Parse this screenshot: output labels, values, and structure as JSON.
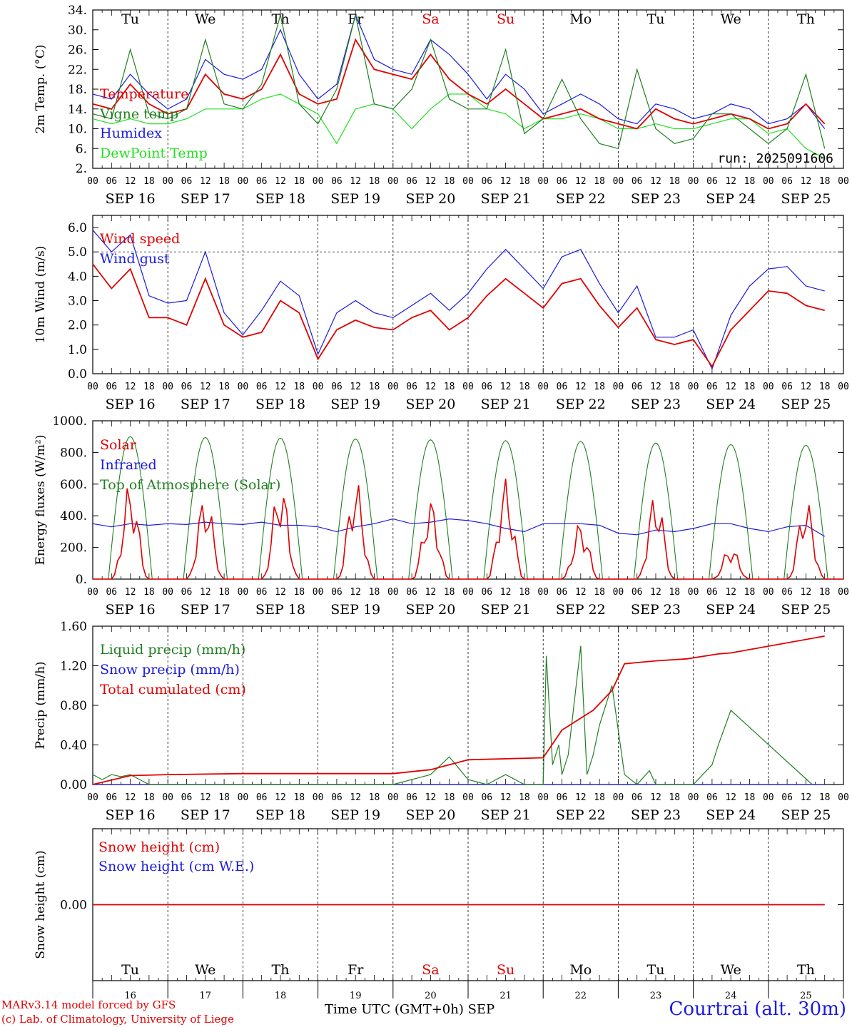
{
  "days": {
    "abbr": [
      "Tu",
      "We",
      "Th",
      "Fr",
      "Sa",
      "Su",
      "Mo",
      "Tu",
      "We",
      "Th"
    ],
    "dates": [
      "SEP 16",
      "SEP 17",
      "SEP 18",
      "SEP 19",
      "SEP 20",
      "SEP 21",
      "SEP 22",
      "SEP 23",
      "SEP 24",
      "SEP 25"
    ],
    "numbers": [
      "16",
      "17",
      "18",
      "19",
      "20",
      "21",
      "22",
      "23",
      "24",
      "25"
    ],
    "weekend_flags": [
      false,
      false,
      false,
      false,
      true,
      true,
      false,
      false,
      false,
      false
    ],
    "hour_ticks": [
      "00",
      "06",
      "12",
      "18"
    ]
  },
  "colors": {
    "red": "#e00000",
    "green": "#208020",
    "blue": "#1a1ae0",
    "lime": "#20e020",
    "black": "#000000"
  },
  "footer": {
    "credit_line1": "MARv3.14 model forced by GFS",
    "credit_line2": "(c) Lab. of Climatology, University of Liege",
    "x_title": "Time UTC (GMT+0h) SEP",
    "station": "Courtrai (alt. 30m)"
  },
  "chart_data": [
    {
      "type": "line",
      "ylabel": "2m Temp. (°C)",
      "ylim": [
        2,
        34
      ],
      "yticks": [
        "2.",
        "6.",
        "10.",
        "14.",
        "18.",
        "22.",
        "26.",
        "30.",
        "34."
      ],
      "annotation": "run: 2025091606",
      "grid": "vertical dashed at day boundaries",
      "series": [
        {
          "name": "Temperature",
          "color": "red",
          "x": [
            0,
            6,
            12,
            18,
            24,
            30,
            36,
            42,
            48,
            54,
            60,
            66,
            72,
            78,
            84,
            90,
            96,
            102,
            108,
            114,
            120,
            126,
            132,
            138,
            144,
            150,
            156,
            162,
            168,
            174,
            180,
            186,
            192,
            198,
            204,
            210,
            216,
            222,
            228,
            234
          ],
          "values": [
            15,
            14,
            19,
            15,
            13,
            14,
            21,
            17,
            16,
            18,
            25,
            17,
            15,
            16,
            28,
            22,
            21,
            20,
            25,
            20,
            17,
            15,
            18,
            15,
            12,
            13,
            14,
            12,
            11,
            10,
            14,
            12,
            11,
            12,
            13,
            12,
            10,
            11,
            15,
            11
          ]
        },
        {
          "name": "Vigne temp",
          "color": "green",
          "x": [
            0,
            6,
            12,
            18,
            24,
            30,
            36,
            42,
            48,
            54,
            60,
            66,
            72,
            78,
            84,
            90,
            96,
            102,
            108,
            114,
            120,
            126,
            132,
            138,
            144,
            150,
            156,
            162,
            168,
            174,
            180,
            186,
            192,
            198,
            204,
            210,
            216,
            222,
            228,
            234
          ],
          "values": [
            13,
            12,
            26,
            13,
            12,
            14,
            28,
            15,
            14,
            19,
            33,
            15,
            11,
            18,
            33,
            15,
            14,
            18,
            28,
            16,
            14,
            14,
            26,
            9,
            12,
            20,
            12,
            7,
            6,
            22,
            10,
            7,
            8,
            13,
            13,
            10,
            7,
            10,
            21,
            6
          ]
        },
        {
          "name": "Humidex",
          "color": "blue",
          "x": [
            0,
            6,
            12,
            18,
            24,
            30,
            36,
            42,
            48,
            54,
            60,
            66,
            72,
            78,
            84,
            90,
            96,
            102,
            108,
            114,
            120,
            126,
            132,
            138,
            144,
            150,
            156,
            162,
            168,
            174,
            180,
            186,
            192,
            198,
            204,
            210,
            216,
            222,
            228,
            234
          ],
          "values": [
            17,
            16,
            21,
            17,
            14,
            16,
            24,
            21,
            20,
            22,
            30,
            21,
            16,
            19,
            33,
            24,
            22,
            21,
            28,
            25,
            21,
            16,
            21,
            18,
            13,
            15,
            17,
            15,
            12,
            11,
            15,
            14,
            12,
            13,
            15,
            14,
            11,
            12,
            15,
            10
          ]
        },
        {
          "name": "DewPoint Temp",
          "color": "lime",
          "x": [
            0,
            6,
            12,
            18,
            24,
            30,
            36,
            42,
            48,
            54,
            60,
            66,
            72,
            78,
            84,
            90,
            96,
            102,
            108,
            114,
            120,
            126,
            132,
            138,
            144,
            150,
            156,
            162,
            168,
            174,
            180,
            186,
            192,
            198,
            204,
            210,
            216,
            222,
            228,
            234
          ],
          "values": [
            12,
            11,
            12,
            11,
            11,
            12,
            14,
            14,
            14,
            16,
            17,
            15,
            13,
            7,
            14,
            15,
            14,
            10,
            14,
            17,
            17,
            14,
            13,
            10,
            12,
            12,
            13,
            12,
            10,
            10,
            11,
            10,
            10,
            11,
            12,
            12,
            9,
            10,
            6,
            4
          ]
        }
      ]
    },
    {
      "type": "line",
      "ylabel": "10m Wind (m/s)",
      "ylim": [
        0,
        6.5
      ],
      "yticks": [
        "0.0",
        "1.0",
        "2.0",
        "3.0",
        "4.0",
        "5.0",
        "6.0"
      ],
      "reference_line": 5.0,
      "series": [
        {
          "name": "Wind speed",
          "color": "red",
          "x": [
            0,
            6,
            12,
            18,
            24,
            30,
            36,
            42,
            48,
            54,
            60,
            66,
            72,
            78,
            84,
            90,
            96,
            102,
            108,
            114,
            120,
            126,
            132,
            138,
            144,
            150,
            156,
            162,
            168,
            174,
            180,
            186,
            192,
            198,
            204,
            210,
            216,
            222,
            228,
            234
          ],
          "values": [
            4.5,
            3.5,
            4.3,
            2.3,
            2.3,
            2.0,
            3.9,
            2.0,
            1.5,
            1.7,
            3.0,
            2.5,
            0.6,
            1.8,
            2.2,
            1.9,
            1.8,
            2.3,
            2.6,
            1.8,
            2.3,
            3.2,
            3.9,
            3.3,
            2.7,
            3.7,
            3.9,
            2.8,
            1.9,
            2.7,
            1.4,
            1.2,
            1.4,
            0.3,
            1.8,
            2.6,
            3.4,
            3.3,
            2.8,
            2.6
          ]
        },
        {
          "name": "Wind gust",
          "color": "blue",
          "x": [
            0,
            6,
            12,
            18,
            24,
            30,
            36,
            42,
            48,
            54,
            60,
            66,
            72,
            78,
            84,
            90,
            96,
            102,
            108,
            114,
            120,
            126,
            132,
            138,
            144,
            150,
            156,
            162,
            168,
            174,
            180,
            186,
            192,
            198,
            204,
            210,
            216,
            222,
            228,
            234
          ],
          "values": [
            5.9,
            5.0,
            5.7,
            3.2,
            2.9,
            3.0,
            5.0,
            2.5,
            1.6,
            2.6,
            3.8,
            3.2,
            0.8,
            2.5,
            3.0,
            2.5,
            2.3,
            2.8,
            3.3,
            2.6,
            3.3,
            4.3,
            5.1,
            4.3,
            3.5,
            4.8,
            5.1,
            3.7,
            2.5,
            3.6,
            1.5,
            1.5,
            1.8,
            0.2,
            2.4,
            3.6,
            4.3,
            4.4,
            3.6,
            3.4
          ]
        }
      ]
    },
    {
      "type": "line",
      "ylabel": "Energy fluxes (W/m²)",
      "ylim": [
        0,
        1000
      ],
      "yticks": [
        "0.",
        "200.",
        "400.",
        "600.",
        "800.",
        "1000."
      ],
      "series": [
        {
          "name": "Solar",
          "color": "red",
          "peak_hour": [
            12,
            12,
            12,
            12,
            12,
            12,
            12,
            12,
            12,
            12
          ],
          "daily_peak": [
            620,
            550,
            630,
            640,
            510,
            640,
            370,
            560,
            210,
            510
          ],
          "x": [
            0,
            6,
            12,
            18,
            24,
            30,
            36,
            42,
            48,
            54,
            60,
            66,
            72,
            78,
            84,
            90,
            96,
            102,
            108,
            114,
            120,
            126,
            132,
            138,
            144,
            150,
            156,
            162,
            168,
            174,
            180,
            186,
            192,
            198,
            204,
            210,
            216,
            222,
            228,
            234
          ],
          "values": [
            0,
            200,
            620,
            0,
            0,
            80,
            550,
            0,
            0,
            300,
            630,
            0,
            0,
            300,
            640,
            0,
            0,
            150,
            510,
            10,
            0,
            300,
            640,
            0,
            0,
            50,
            370,
            0,
            0,
            300,
            560,
            0,
            0,
            100,
            210,
            0,
            0,
            100,
            510,
            0
          ]
        },
        {
          "name": "Infrared",
          "color": "blue",
          "x": [
            0,
            6,
            12,
            18,
            24,
            30,
            36,
            42,
            48,
            54,
            60,
            66,
            72,
            78,
            84,
            90,
            96,
            102,
            108,
            114,
            120,
            126,
            132,
            138,
            144,
            150,
            156,
            162,
            168,
            174,
            180,
            186,
            192,
            198,
            204,
            210,
            216,
            222,
            228,
            234
          ],
          "values": [
            350,
            330,
            350,
            340,
            350,
            345,
            360,
            350,
            345,
            360,
            340,
            340,
            330,
            300,
            330,
            350,
            380,
            350,
            360,
            380,
            370,
            350,
            320,
            300,
            350,
            350,
            350,
            340,
            290,
            280,
            310,
            300,
            320,
            350,
            350,
            320,
            300,
            330,
            340,
            270
          ]
        },
        {
          "name": "Top of Atmosphere (Solar)",
          "color": "green",
          "daily_peak": [
            900,
            895,
            890,
            885,
            880,
            875,
            870,
            860,
            850,
            845
          ]
        }
      ]
    },
    {
      "type": "line",
      "ylabel": "Precip (mm/h)",
      "ylim": [
        0,
        1.6
      ],
      "yticks": [
        "0.00",
        "0.40",
        "0.80",
        "1.20",
        "1.60"
      ],
      "series": [
        {
          "name": "Liquid precip (mm/h)",
          "color": "green",
          "x": [
            0,
            3,
            6,
            9,
            12,
            15,
            18,
            96,
            102,
            108,
            114,
            120,
            126,
            132,
            138,
            144,
            145,
            147,
            149,
            150,
            152,
            156,
            158,
            160,
            162,
            166,
            170,
            174,
            178,
            180,
            192,
            198,
            200,
            204,
            230
          ],
          "values": [
            0.1,
            0.05,
            0.1,
            0.08,
            0.1,
            0.05,
            0,
            0,
            0.05,
            0.1,
            0.28,
            0.05,
            0,
            0.1,
            0,
            0,
            1.3,
            0.2,
            0.4,
            0.1,
            0.3,
            1.4,
            0.1,
            0.3,
            0.6,
            1.0,
            0.1,
            0,
            0.14,
            0,
            0,
            0.2,
            0.4,
            0.75,
            0
          ]
        },
        {
          "name": "Snow precip (mm/h)",
          "color": "blue",
          "x": [
            0,
            234
          ],
          "values": [
            0,
            0
          ]
        },
        {
          "name": "Total cumulated (cm)",
          "color": "red",
          "x": [
            0,
            12,
            24,
            48,
            96,
            108,
            114,
            120,
            144,
            150,
            160,
            166,
            170,
            180,
            190,
            200,
            204,
            234
          ],
          "values": [
            0,
            0.09,
            0.1,
            0.11,
            0.11,
            0.15,
            0.2,
            0.25,
            0.27,
            0.55,
            0.75,
            0.95,
            1.22,
            1.25,
            1.27,
            1.32,
            1.33,
            1.5
          ]
        }
      ]
    },
    {
      "type": "line",
      "ylabel": "Snow height (cm)",
      "ylim": [
        -1,
        1
      ],
      "yticks": [
        "0.00"
      ],
      "series": [
        {
          "name": "Snow height (cm)",
          "color": "red",
          "x": [
            0,
            234
          ],
          "values": [
            0,
            0
          ]
        },
        {
          "name": "Snow height (cm W.E.)",
          "color": "blue",
          "x": [
            0,
            234
          ],
          "values": [
            0,
            0
          ]
        }
      ]
    }
  ]
}
